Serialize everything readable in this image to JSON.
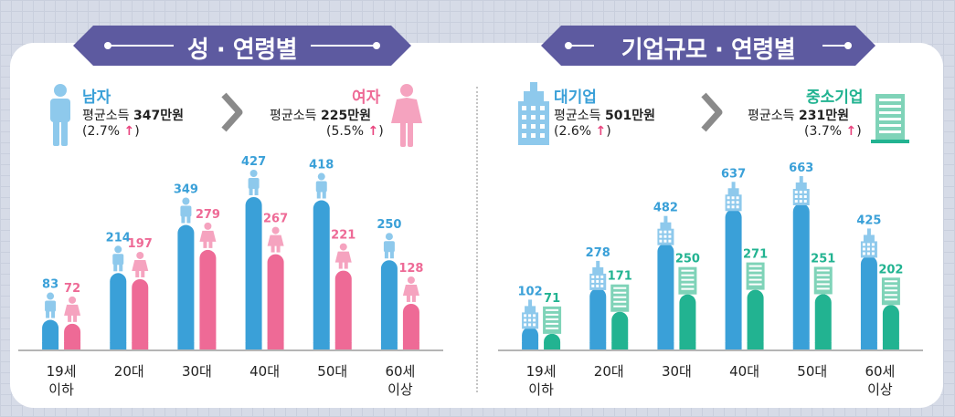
{
  "colors": {
    "ribbon": "#5d5aa0",
    "male": "#3aa0d8",
    "male_light": "#8ec9ec",
    "female": "#ee6a96",
    "female_light": "#f5a3bf",
    "large": "#3aa0d8",
    "small": "#22b391",
    "small_light": "#7fd3b8"
  },
  "left": {
    "title": "성 · 연령별",
    "male": {
      "name": "남자",
      "prefix": "평균소득 ",
      "income": "347만원",
      "change": "(2.7% ",
      "close": ")",
      "arrow": "↑"
    },
    "female": {
      "name": "여자",
      "prefix": "평균소득 ",
      "income": "225만원",
      "change": "(5.5% ",
      "close": ")",
      "arrow": "↑"
    }
  },
  "right": {
    "title": "기업규모 · 연령별",
    "large": {
      "name": "대기업",
      "prefix": "평균소득 ",
      "income": "501만원",
      "change": "(2.6% ",
      "close": ")",
      "arrow": "↑"
    },
    "small": {
      "name": "중소기업",
      "prefix": "평균소득 ",
      "income": "231만원",
      "change": "(3.7% ",
      "close": ")",
      "arrow": "↑"
    }
  },
  "chart_data": [
    {
      "type": "bar",
      "categories": [
        "19세\n이하",
        "20대",
        "30대",
        "40대",
        "50대",
        "60세\n이상"
      ],
      "series": [
        {
          "name": "남자",
          "values": [
            83,
            214,
            349,
            427,
            418,
            250
          ]
        },
        {
          "name": "여자",
          "values": [
            72,
            197,
            279,
            267,
            221,
            128
          ]
        }
      ]
    },
    {
      "type": "bar",
      "categories": [
        "19세\n이하",
        "20대",
        "30대",
        "40대",
        "50대",
        "60세\n이상"
      ],
      "series": [
        {
          "name": "대기업",
          "values": [
            102,
            278,
            482,
            637,
            663,
            425
          ]
        },
        {
          "name": "중소기업",
          "values": [
            71,
            171,
            250,
            271,
            251,
            202
          ]
        }
      ]
    }
  ]
}
